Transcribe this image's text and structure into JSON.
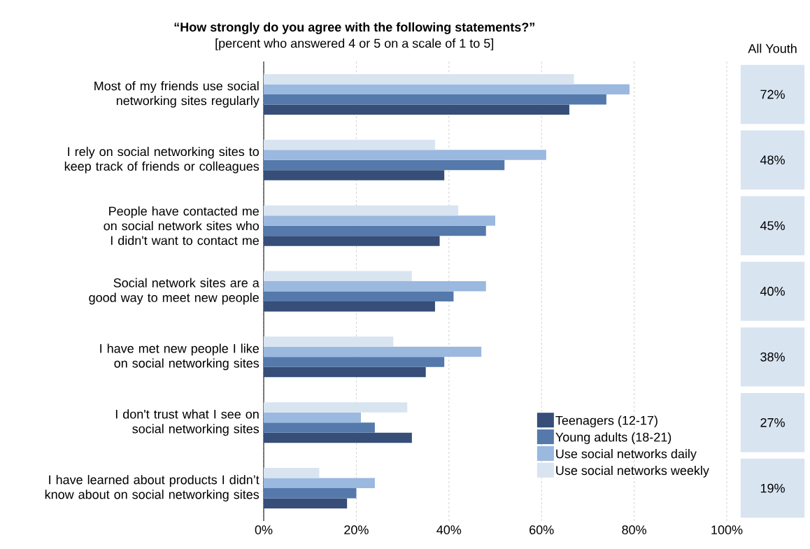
{
  "chart_data": {
    "type": "bar",
    "orientation": "horizontal",
    "title": "“How strongly do you agree with the following statements?”",
    "subtitle": "[percent who answered 4 or 5 on a scale of 1 to 5]",
    "categories": [
      "Most of my friends use social networking sites regularly",
      "I rely on social networking sites to keep track of friends or colleagues",
      "People have contacted me on social network sites who I didn't want to contact me",
      "Social network sites are a good way to meet new people",
      "I have met new people I like on social networking sites",
      "I don't trust what I see on social networking sites",
      "I have learned about products I didn’t know about on social networking sites"
    ],
    "series": [
      {
        "name": "Teenagers (12-17)",
        "color": "#364e78",
        "values": [
          66,
          39,
          38,
          37,
          35,
          32,
          18
        ]
      },
      {
        "name": "Young adults (18-21)",
        "color": "#5479aa",
        "values": [
          74,
          52,
          48,
          41,
          39,
          24,
          20
        ]
      },
      {
        "name": "Use social networks daily",
        "color": "#9bb8df",
        "values": [
          79,
          61,
          50,
          48,
          47,
          21,
          24
        ]
      },
      {
        "name": "Use social networks weekly",
        "color": "#d9e4f1",
        "values": [
          67,
          37,
          42,
          32,
          28,
          31,
          12
        ]
      }
    ],
    "xlim": [
      0,
      100
    ],
    "xticks": [
      {
        "value": 0,
        "label": "0%"
      },
      {
        "value": 20,
        "label": "20%"
      },
      {
        "value": 40,
        "label": "40%"
      },
      {
        "value": 60,
        "label": "60%"
      },
      {
        "value": 80,
        "label": "80%"
      },
      {
        "value": 100,
        "label": "100%"
      }
    ],
    "grid": "x",
    "legend": "bottom right",
    "annotations": [
      "All Youth",
      "72%",
      "48%",
      "45%",
      "40%",
      "38%",
      "27%",
      "19%"
    ]
  }
}
